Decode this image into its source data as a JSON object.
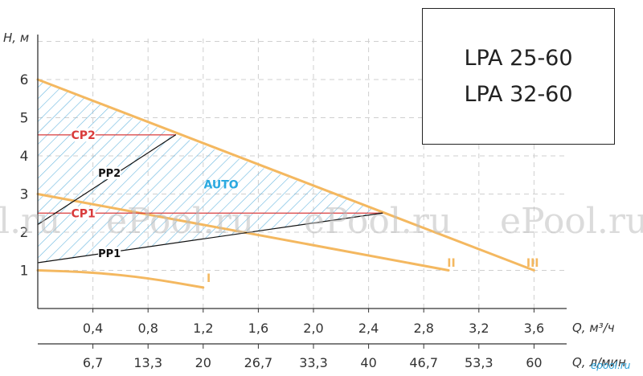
{
  "models": [
    "LPA 25-60",
    "LPA 32-60"
  ],
  "watermarks": [
    "l.ru",
    "ePool.ru",
    "ePool.ru",
    "ePool.ru"
  ],
  "logo_text": "epool.ru",
  "colors": {
    "curve": "#f4b860",
    "cp_line": "#d93b3b",
    "pp_line": "#111111",
    "hatch": "#6ab8e0",
    "auto_label": "#2aa9e0",
    "grid": "#cfcfcf"
  },
  "chart_data": {
    "type": "line",
    "ylabel": "H, м",
    "xlabel": "Q, м³/ч",
    "x2label": "Q, л/мин",
    "xlim": [
      0,
      3.9
    ],
    "ylim": [
      0,
      7
    ],
    "grid": true,
    "yticks": [
      "1",
      "2",
      "3",
      "4",
      "5",
      "6"
    ],
    "xticks": [
      "0,4",
      "0,8",
      "1,2",
      "1,6",
      "2,0",
      "2,4",
      "2,8",
      "3,2",
      "3,6"
    ],
    "x2ticks": [
      "6,7",
      "13,3",
      "20",
      "26,7",
      "33,3",
      "40",
      "46,7",
      "53,3",
      "60"
    ],
    "series": [
      {
        "name": "I",
        "kind": "speed",
        "x": [
          0,
          0.4,
          0.8,
          1.2
        ],
        "y": [
          1.0,
          0.95,
          0.8,
          0.55
        ]
      },
      {
        "name": "II",
        "kind": "speed",
        "x": [
          0,
          2.98
        ],
        "y": [
          3.0,
          1.0
        ]
      },
      {
        "name": "III",
        "kind": "speed",
        "x": [
          0,
          3.6
        ],
        "y": [
          6.0,
          1.0
        ]
      },
      {
        "name": "CP2",
        "kind": "cp",
        "x": [
          0,
          1.0
        ],
        "y": [
          4.55,
          4.55
        ]
      },
      {
        "name": "CP1",
        "kind": "cp",
        "x": [
          0,
          2.5
        ],
        "y": [
          2.5,
          2.5
        ]
      },
      {
        "name": "PP2",
        "kind": "pp",
        "x": [
          0,
          1.0
        ],
        "y": [
          2.2,
          4.55
        ]
      },
      {
        "name": "PP1",
        "kind": "pp",
        "x": [
          0,
          2.5
        ],
        "y": [
          1.2,
          2.5
        ]
      }
    ],
    "annotations": [
      {
        "text": "CP2",
        "x": 0.33,
        "y": 4.55
      },
      {
        "text": "CP1",
        "x": 0.33,
        "y": 2.5
      },
      {
        "text": "PP2",
        "x": 0.52,
        "y": 3.55
      },
      {
        "text": "PP1",
        "x": 0.52,
        "y": 1.45
      },
      {
        "text": "AUTO",
        "x": 1.33,
        "y": 3.25
      },
      {
        "text": "I",
        "x": 1.24,
        "y": 0.8
      },
      {
        "text": "II",
        "x": 3.0,
        "y": 1.2
      },
      {
        "text": "III",
        "x": 3.59,
        "y": 1.2
      }
    ],
    "auto_region": {
      "x": [
        0,
        1.0,
        2.5,
        0
      ],
      "y": [
        6.0,
        4.55,
        2.5,
        1.2
      ]
    }
  }
}
